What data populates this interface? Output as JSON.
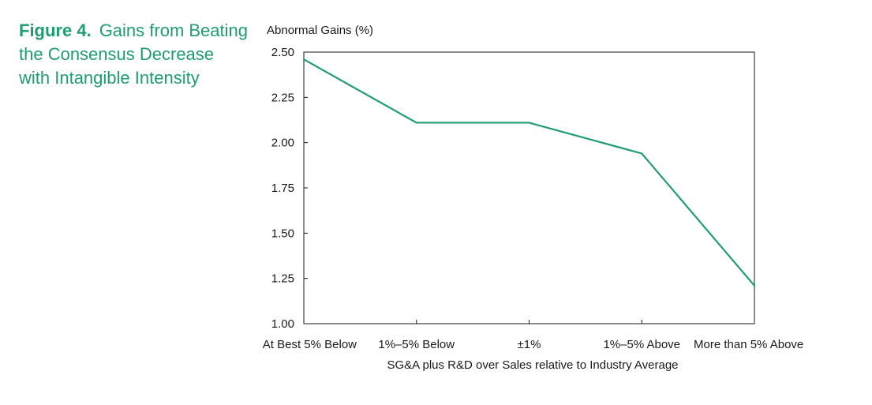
{
  "figure": {
    "label": "Figure 4.",
    "title": "Gains from Beating the Consensus Decrease with Intangible Intensity"
  },
  "chart_data": {
    "type": "line",
    "title": "Gains from Beating the Consensus Decrease with Intangible Intensity",
    "ylabel": "Abnormal Gains (%)",
    "xlabel": "SG&A plus R&D over Sales relative to Industry Average",
    "categories": [
      "At Best 5% Below",
      "1%–5% Below",
      "±1%",
      "1%–5% Above",
      "More than 5% Above"
    ],
    "series": [
      {
        "values": [
          2.46,
          2.11,
          2.11,
          1.94,
          1.21
        ],
        "color": "#1e9c72"
      }
    ],
    "ylim": [
      1.0,
      2.5
    ],
    "yticks": [
      "1.00",
      "1.25",
      "1.50",
      "1.75",
      "2.00",
      "2.25",
      "2.50"
    ],
    "grid": false,
    "legend": "none"
  }
}
